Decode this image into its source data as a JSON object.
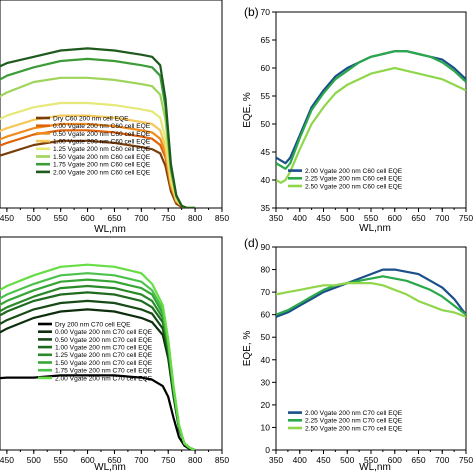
{
  "chart_data": [
    {
      "type": "line",
      "panel": "",
      "xlabel": "WL,nm",
      "ylabel": "",
      "xlim": [
        400,
        850
      ],
      "ylim": [
        0,
        100
      ],
      "xticks": [
        450,
        500,
        550,
        600,
        650,
        700,
        750,
        800,
        850
      ],
      "legend_position": "lower-left",
      "series": [
        {
          "name": "Dry C60 200 nm cell EQE",
          "color": "#7a3e0b",
          "x": [
            400,
            450,
            500,
            550,
            600,
            650,
            700,
            720,
            735,
            745,
            755,
            765,
            775,
            785,
            800
          ],
          "y": [
            22,
            26,
            30,
            32,
            32,
            31,
            29,
            28,
            26,
            20,
            8,
            2,
            0.5,
            0,
            0
          ]
        },
        {
          "name": "0.00 Vgate 200 nm C60 cell EQE",
          "color": "#e0640b",
          "x": [
            400,
            450,
            500,
            550,
            600,
            650,
            700,
            720,
            735,
            745,
            755,
            765,
            775,
            785,
            800
          ],
          "y": [
            26,
            31,
            35,
            37,
            37,
            36,
            34,
            33,
            30,
            24,
            10,
            3,
            1,
            0,
            0
          ]
        },
        {
          "name": "0.50 Vgate 200 nm C60 cell EQE",
          "color": "#f08c1e",
          "x": [
            400,
            450,
            500,
            550,
            600,
            650,
            700,
            720,
            735,
            745,
            755,
            765,
            775,
            785,
            800
          ],
          "y": [
            29,
            34,
            38,
            40,
            40,
            39,
            37,
            36,
            33,
            26,
            11,
            3,
            1,
            0,
            0
          ]
        },
        {
          "name": "1.00 Vgate 200 nm C60 cell EQE",
          "color": "#f5c85a",
          "x": [
            400,
            450,
            500,
            550,
            600,
            650,
            700,
            720,
            735,
            745,
            755,
            765,
            775,
            785,
            800
          ],
          "y": [
            33,
            38,
            42,
            44,
            44,
            43,
            41,
            40,
            37,
            29,
            12,
            4,
            1,
            0,
            0
          ]
        },
        {
          "name": "1.25 Vgate 200 nm C60 cell EQE",
          "color": "#e6e87a",
          "x": [
            400,
            450,
            500,
            550,
            600,
            650,
            700,
            720,
            735,
            745,
            755,
            765,
            775,
            785,
            800
          ],
          "y": [
            38,
            44,
            48,
            50,
            50,
            49,
            47,
            46,
            43,
            33,
            14,
            4,
            1,
            0,
            0
          ]
        },
        {
          "name": "1.50 Vgate 200 nm C60 cell EQE",
          "color": "#9fd45a",
          "x": [
            400,
            450,
            500,
            550,
            600,
            650,
            700,
            720,
            735,
            745,
            755,
            765,
            775,
            785,
            800
          ],
          "y": [
            48,
            55,
            60,
            62,
            62,
            61,
            59,
            58,
            54,
            42,
            17,
            5,
            1,
            0,
            0
          ]
        },
        {
          "name": "1.75 Vgate 200 nm C60 cell EQE",
          "color": "#3c9c37",
          "x": [
            400,
            450,
            500,
            550,
            600,
            650,
            700,
            720,
            735,
            745,
            755,
            765,
            775,
            785,
            800
          ],
          "y": [
            56,
            63,
            67,
            70,
            71,
            70,
            68,
            67,
            63,
            48,
            19,
            6,
            1,
            0,
            0
          ]
        },
        {
          "name": "2.00 Vgate 200 nm C60 cell EQE",
          "color": "#1e5a1e",
          "x": [
            400,
            450,
            500,
            550,
            600,
            650,
            700,
            720,
            735,
            745,
            755,
            765,
            775,
            785,
            800
          ],
          "y": [
            63,
            69,
            72,
            75,
            76,
            75,
            73,
            72,
            68,
            52,
            21,
            6,
            1,
            0,
            0
          ]
        }
      ]
    },
    {
      "type": "line",
      "panel": "(b)",
      "xlabel": "WL,nm",
      "ylabel": "EQE, %",
      "xlim": [
        350,
        750
      ],
      "ylim": [
        35,
        70
      ],
      "xticks": [
        350,
        400,
        450,
        500,
        550,
        600,
        650,
        700,
        750
      ],
      "yticks": [
        35,
        40,
        45,
        50,
        55,
        60,
        65,
        70
      ],
      "legend_position": "lower-right",
      "series": [
        {
          "name": "2.00 Vgate 200 nm C60 cell EQE",
          "color": "#1a4f8a",
          "x": [
            350,
            360,
            370,
            380,
            400,
            425,
            450,
            475,
            500,
            525,
            550,
            575,
            600,
            625,
            650,
            675,
            700,
            725,
            750
          ],
          "y": [
            44,
            43.5,
            43,
            44,
            48,
            53,
            56,
            58.5,
            60,
            61,
            62,
            62.5,
            63,
            63,
            62.5,
            62,
            61.5,
            60,
            58
          ]
        },
        {
          "name": "2.25 Vgate 200 nm C60 cell EQE",
          "color": "#2aa84a",
          "x": [
            350,
            360,
            370,
            380,
            400,
            425,
            450,
            475,
            500,
            525,
            550,
            575,
            600,
            625,
            650,
            675,
            700,
            725,
            750
          ],
          "y": [
            43,
            42.5,
            42,
            43,
            47.5,
            52.5,
            55.5,
            58,
            59.5,
            61,
            62,
            62.5,
            63,
            63,
            62.5,
            62,
            61,
            59.5,
            57.5
          ]
        },
        {
          "name": "2.50 Vgate 200 nm C60 cell EQE",
          "color": "#8fd64a",
          "x": [
            350,
            360,
            370,
            380,
            400,
            425,
            450,
            475,
            500,
            525,
            550,
            575,
            600,
            625,
            650,
            675,
            700,
            725,
            750
          ],
          "y": [
            40,
            39.5,
            40,
            41.5,
            45.5,
            50,
            53,
            55.5,
            57,
            58,
            59,
            59.5,
            60,
            59.5,
            59,
            58.5,
            58,
            57,
            56
          ]
        }
      ]
    },
    {
      "type": "line",
      "panel": "",
      "xlabel": "WL,nm",
      "ylabel": "",
      "xlim": [
        400,
        850
      ],
      "ylim": [
        0,
        100
      ],
      "xticks": [
        450,
        500,
        550,
        600,
        650,
        700,
        750,
        800,
        850
      ],
      "legend_position": "lower-left",
      "series": [
        {
          "name": "Dry 200 nm C70 cell EQE",
          "color": "#000000",
          "x": [
            400,
            450,
            500,
            550,
            600,
            650,
            700,
            720,
            740,
            750,
            760,
            770,
            780,
            790,
            800
          ],
          "y": [
            33,
            34,
            34,
            35,
            35,
            35,
            34,
            33,
            30,
            25,
            15,
            6,
            2,
            0.5,
            0
          ]
        },
        {
          "name": "0.00 Vgate 200 nm C70 cell EQE",
          "color": "#0d2e0d",
          "x": [
            400,
            450,
            500,
            550,
            600,
            650,
            700,
            720,
            740,
            750,
            760,
            770,
            780,
            790,
            800
          ],
          "y": [
            50,
            57,
            62,
            65,
            66,
            65,
            62,
            60,
            54,
            43,
            25,
            10,
            3,
            1,
            0
          ]
        },
        {
          "name": "0.50 Vgate 200 nm C70 cell EQE",
          "color": "#174a17",
          "x": [
            400,
            450,
            500,
            550,
            600,
            650,
            700,
            720,
            740,
            750,
            760,
            770,
            780,
            790,
            800
          ],
          "y": [
            54,
            61,
            66,
            69,
            70,
            69,
            66,
            64,
            57,
            45,
            26,
            10,
            3,
            1,
            0
          ]
        },
        {
          "name": "1.00 Vgate 200 nm C70 cell EQE",
          "color": "#1f6a1f",
          "x": [
            400,
            450,
            500,
            550,
            600,
            650,
            700,
            720,
            740,
            750,
            760,
            770,
            780,
            790,
            800
          ],
          "y": [
            58,
            65,
            70,
            73,
            74,
            73,
            70,
            67,
            60,
            47,
            27,
            11,
            3,
            1,
            0
          ]
        },
        {
          "name": "1.25 Vgate 200 nm C70 cell EQE",
          "color": "#2a8a2a",
          "x": [
            400,
            450,
            500,
            550,
            600,
            650,
            700,
            720,
            740,
            750,
            760,
            770,
            780,
            790,
            800
          ],
          "y": [
            60,
            67,
            72,
            76,
            77,
            76,
            73,
            70,
            62,
            48,
            28,
            11,
            3,
            1,
            0
          ]
        },
        {
          "name": "1.50 Vgate 200 nm C70 cell EQE",
          "color": "#36a636",
          "x": [
            400,
            450,
            500,
            550,
            600,
            650,
            700,
            720,
            740,
            750,
            760,
            770,
            780,
            790,
            800
          ],
          "y": [
            63,
            70,
            75,
            79,
            80,
            79,
            76,
            73,
            64,
            50,
            29,
            11,
            3,
            1,
            0
          ]
        },
        {
          "name": "1.75 Vgate 200 nm C70 cell EQE",
          "color": "#4cc24c",
          "x": [
            400,
            450,
            500,
            550,
            600,
            650,
            700,
            720,
            740,
            750,
            760,
            770,
            780,
            790,
            800
          ],
          "y": [
            66,
            73,
            78,
            82,
            83,
            82,
            79,
            75,
            66,
            51,
            29,
            11,
            3,
            1,
            0
          ]
        },
        {
          "name": "2.00 Vgate 200 nm C70 cell EQE",
          "color": "#66dd44",
          "x": [
            400,
            450,
            500,
            550,
            600,
            650,
            700,
            720,
            740,
            750,
            760,
            770,
            780,
            790,
            800
          ],
          "y": [
            70,
            77,
            82,
            86,
            87,
            86,
            83,
            78,
            68,
            52,
            30,
            12,
            3,
            1,
            0
          ]
        }
      ]
    },
    {
      "type": "line",
      "panel": "(d)",
      "xlabel": "WL,nm",
      "ylabel": "EQE, %",
      "xlim": [
        350,
        750
      ],
      "ylim": [
        0,
        90
      ],
      "xticks": [
        350,
        400,
        450,
        500,
        550,
        600,
        650,
        700,
        750
      ],
      "yticks": [
        0,
        10,
        20,
        30,
        40,
        50,
        60,
        70,
        80,
        90
      ],
      "legend_position": "lower-right",
      "series": [
        {
          "name": "2.00 Vgate 200 nm C70 cell EQE",
          "color": "#1a4f8a",
          "x": [
            350,
            375,
            400,
            425,
            450,
            475,
            500,
            525,
            550,
            575,
            600,
            625,
            650,
            675,
            700,
            725,
            750
          ],
          "y": [
            59,
            61,
            64,
            67,
            70,
            72,
            74,
            76,
            78,
            80,
            80,
            79,
            78,
            75,
            72,
            67,
            60
          ]
        },
        {
          "name": "2.25 Vgate 200 nm C70 cell EQE",
          "color": "#2aa84a",
          "x": [
            350,
            375,
            400,
            425,
            450,
            475,
            500,
            525,
            550,
            575,
            600,
            625,
            650,
            675,
            700,
            725,
            750
          ],
          "y": [
            60,
            62,
            65,
            68,
            71,
            73,
            74,
            75,
            76,
            77,
            76,
            75,
            73,
            71,
            68,
            64,
            60
          ]
        },
        {
          "name": "2.50 Vgate 200 nm C70 cell EQE",
          "color": "#8fd64a",
          "x": [
            350,
            375,
            400,
            425,
            450,
            475,
            500,
            525,
            550,
            575,
            600,
            625,
            650,
            675,
            700,
            725,
            750
          ],
          "y": [
            69,
            70,
            71,
            72,
            73,
            73,
            74,
            74,
            74,
            73,
            71,
            69,
            66,
            64,
            62,
            61,
            59
          ]
        }
      ]
    }
  ]
}
